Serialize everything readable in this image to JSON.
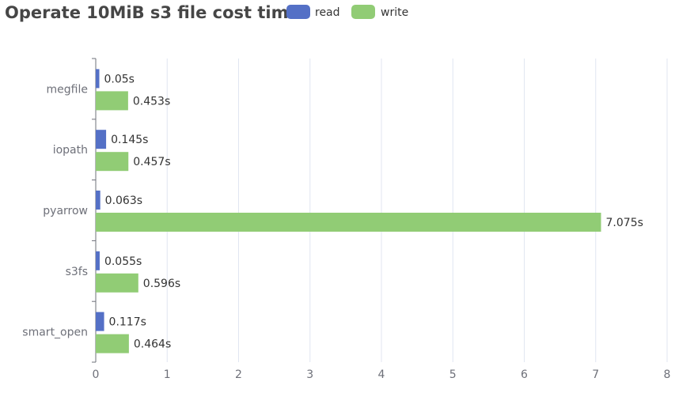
{
  "chart_data": {
    "type": "bar",
    "orientation": "horizontal",
    "title": "Operate 10MiB s3 file cost time",
    "categories": [
      "megfile",
      "iopath",
      "pyarrow",
      "s3fs",
      "smart_open"
    ],
    "series": [
      {
        "name": "read",
        "color": "#5470c6",
        "values": [
          0.05,
          0.145,
          0.063,
          0.055,
          0.117
        ],
        "labels": [
          "0.05s",
          "0.145s",
          "0.063s",
          "0.055s",
          "0.117s"
        ]
      },
      {
        "name": "write",
        "color": "#91cc75",
        "values": [
          0.453,
          0.457,
          7.075,
          0.596,
          0.464
        ],
        "labels": [
          "0.453s",
          "0.457s",
          "7.075s",
          "0.596s",
          "0.464s"
        ]
      }
    ],
    "x_ticks": [
      "0",
      "1",
      "2",
      "3",
      "4",
      "5",
      "6",
      "7",
      "8"
    ],
    "xlim": [
      0,
      8
    ],
    "xlabel": "",
    "ylabel": "",
    "grid": true,
    "legend_position": "top"
  }
}
